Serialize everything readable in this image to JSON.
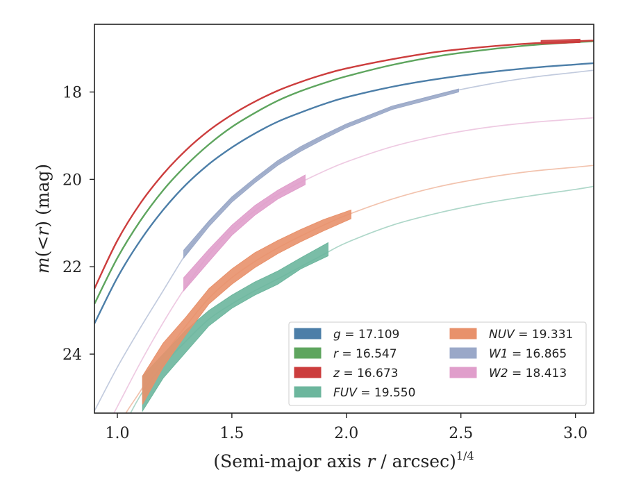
{
  "chart_data": {
    "type": "line",
    "title": "",
    "xlabel_main": "(Semi-major axis ",
    "xlabel_var": "r",
    "xlabel_unit": " / arcsec)",
    "xlabel_exp": "1/4",
    "ylabel_var1": "m",
    "ylabel_mid": "(<",
    "ylabel_var2": "r",
    "ylabel_end": ") (mag)",
    "xlim": [
      0.9,
      3.08
    ],
    "ylim": [
      25.35,
      16.45
    ],
    "y_inverted": true,
    "xticks": [
      1.0,
      1.5,
      2.0,
      2.5,
      3.0
    ],
    "xtick_labels": [
      "1.0",
      "1.5",
      "2.0",
      "2.5",
      "3.0"
    ],
    "yticks": [
      18,
      20,
      22,
      24
    ],
    "ytick_labels": [
      "18",
      "20",
      "22",
      "24"
    ],
    "grid": false,
    "legend_position": "lower-right",
    "series": [
      {
        "name": "g = 17.109",
        "band": "g",
        "value": "17.109",
        "color": "#4c7ea8",
        "x": [
          0.9,
          1.0,
          1.1,
          1.2,
          1.3,
          1.4,
          1.5,
          1.6,
          1.7,
          1.8,
          1.9,
          2.0,
          2.2,
          2.4,
          2.6,
          2.8,
          3.0,
          3.08
        ],
        "y": [
          23.3,
          22.25,
          21.4,
          20.7,
          20.12,
          19.65,
          19.27,
          18.95,
          18.68,
          18.47,
          18.28,
          18.12,
          17.88,
          17.7,
          17.56,
          17.45,
          17.37,
          17.34
        ]
      },
      {
        "name": "r = 16.547",
        "band": "r",
        "value": "16.547",
        "color": "#5ea55e",
        "x": [
          0.9,
          1.0,
          1.1,
          1.2,
          1.3,
          1.4,
          1.5,
          1.6,
          1.7,
          1.8,
          1.9,
          2.0,
          2.2,
          2.4,
          2.6,
          2.8,
          3.0,
          3.08
        ],
        "y": [
          22.85,
          21.8,
          20.95,
          20.25,
          19.68,
          19.2,
          18.8,
          18.48,
          18.2,
          17.98,
          17.8,
          17.64,
          17.38,
          17.18,
          17.04,
          16.93,
          16.86,
          16.84
        ]
      },
      {
        "name": "z = 16.673",
        "band": "z",
        "value": "16.673",
        "color": "#cc3d3d",
        "x": [
          0.9,
          1.0,
          1.1,
          1.2,
          1.3,
          1.4,
          1.5,
          1.6,
          1.7,
          1.8,
          1.9,
          2.0,
          2.2,
          2.4,
          2.6,
          2.8,
          3.0,
          3.08
        ],
        "y": [
          22.5,
          21.4,
          20.55,
          19.88,
          19.33,
          18.88,
          18.52,
          18.22,
          17.97,
          17.77,
          17.6,
          17.46,
          17.25,
          17.08,
          16.97,
          16.89,
          16.84,
          16.82
        ],
        "band_x": [
          2.85,
          3.02
        ],
        "band_lo": [
          16.82,
          16.79
        ],
        "band_hi": [
          16.9,
          16.87
        ]
      },
      {
        "name": "FUV = 19.550",
        "band": "FUV",
        "value": "19.550",
        "color": "#6cb69d",
        "x": [
          0.9,
          1.0,
          1.1,
          1.2,
          1.3,
          1.4,
          1.5,
          1.6,
          1.7,
          1.8,
          1.9,
          2.0,
          2.2,
          2.4,
          2.6,
          2.8,
          3.0,
          3.08
        ],
        "y": [
          27.5,
          26.0,
          24.95,
          24.25,
          23.7,
          23.2,
          22.85,
          22.55,
          22.28,
          22.0,
          21.72,
          21.45,
          21.05,
          20.77,
          20.55,
          20.38,
          20.23,
          20.16
        ],
        "band_x": [
          1.11,
          1.2,
          1.3,
          1.4,
          1.5,
          1.6,
          1.7,
          1.8,
          1.92
        ],
        "band_lo": [
          24.5,
          24.0,
          23.45,
          23.0,
          22.65,
          22.35,
          22.1,
          21.8,
          21.45
        ],
        "band_hi": [
          25.3,
          24.55,
          23.95,
          23.35,
          22.95,
          22.65,
          22.4,
          22.05,
          21.75
        ]
      },
      {
        "name": "NUV = 19.331",
        "band": "NUV",
        "value": "19.331",
        "color": "#e8916b",
        "x": [
          0.9,
          1.0,
          1.1,
          1.2,
          1.3,
          1.4,
          1.5,
          1.6,
          1.7,
          1.8,
          1.9,
          2.0,
          2.2,
          2.4,
          2.6,
          2.8,
          3.0,
          3.08
        ],
        "y": [
          27.0,
          25.7,
          24.85,
          24.05,
          23.35,
          22.72,
          22.25,
          21.88,
          21.57,
          21.3,
          21.05,
          20.82,
          20.45,
          20.17,
          19.97,
          19.82,
          19.72,
          19.68
        ],
        "band_x": [
          1.11,
          1.2,
          1.3,
          1.4,
          1.5,
          1.6,
          1.7,
          1.8,
          1.9,
          2.02
        ],
        "band_lo": [
          24.5,
          23.75,
          23.15,
          22.5,
          22.05,
          21.68,
          21.4,
          21.15,
          20.92,
          20.7
        ],
        "band_hi": [
          25.15,
          24.3,
          23.55,
          22.85,
          22.4,
          22.02,
          21.7,
          21.43,
          21.18,
          20.9
        ]
      },
      {
        "name": "W1 = 16.865",
        "band": "W1",
        "value": "16.865",
        "color": "#9aa8c8",
        "x": [
          0.9,
          1.0,
          1.1,
          1.2,
          1.3,
          1.4,
          1.5,
          1.6,
          1.7,
          1.8,
          1.9,
          2.0,
          2.2,
          2.4,
          2.6,
          2.8,
          3.0,
          3.08
        ],
        "y": [
          25.3,
          24.3,
          23.4,
          22.55,
          21.7,
          20.98,
          20.45,
          20.02,
          19.62,
          19.3,
          19.02,
          18.77,
          18.36,
          18.06,
          17.84,
          17.67,
          17.55,
          17.5
        ],
        "band_x": [
          1.29,
          1.4,
          1.5,
          1.6,
          1.7,
          1.8,
          1.9,
          2.0,
          2.2,
          2.49
        ],
        "band_lo": [
          21.62,
          20.95,
          20.4,
          19.97,
          19.57,
          19.25,
          18.98,
          18.73,
          18.32,
          17.93
        ],
        "band_hi": [
          21.8,
          21.08,
          20.52,
          20.08,
          19.68,
          19.36,
          19.08,
          18.82,
          18.4,
          18.0
        ]
      },
      {
        "name": "W2 = 18.413",
        "band": "W2",
        "value": "18.413",
        "color": "#e09ecb",
        "x": [
          0.9,
          1.0,
          1.1,
          1.2,
          1.3,
          1.4,
          1.5,
          1.6,
          1.7,
          1.8,
          1.9,
          2.0,
          2.2,
          2.4,
          2.6,
          2.8,
          3.0,
          3.08
        ],
        "y": [
          26.2,
          25.2,
          24.2,
          23.28,
          22.45,
          21.72,
          21.15,
          20.72,
          20.35,
          20.07,
          19.82,
          19.6,
          19.25,
          19.0,
          18.82,
          18.7,
          18.62,
          18.59
        ],
        "band_x": [
          1.29,
          1.4,
          1.5,
          1.6,
          1.7,
          1.82
        ],
        "band_lo": [
          22.25,
          21.6,
          21.05,
          20.6,
          20.25,
          19.9
        ],
        "band_hi": [
          22.55,
          21.88,
          21.28,
          20.82,
          20.45,
          20.12
        ]
      }
    ],
    "legend_columns": [
      [
        "g",
        "r",
        "z",
        "FUV"
      ],
      [
        "NUV",
        "W1",
        "W2"
      ]
    ]
  }
}
